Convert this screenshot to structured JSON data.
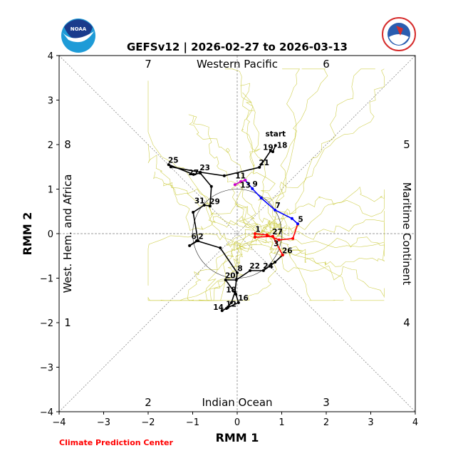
{
  "chart_data": {
    "type": "line",
    "title": "GEFSv12 | 2026-02-27 to 2026-03-13",
    "xlabel": "RMM 1",
    "ylabel": "RMM 2",
    "xlim": [
      -4,
      4
    ],
    "ylim": [
      -4,
      4
    ],
    "xticks": [
      "−4",
      "−3",
      "−2",
      "−1",
      "0",
      "1",
      "2",
      "3",
      "4"
    ],
    "yticks": [
      "−4",
      "−3",
      "−2",
      "−1",
      "0",
      "1",
      "2",
      "3",
      "4"
    ],
    "phases": [
      {
        "label": "1",
        "pos": "left-lower"
      },
      {
        "label": "2",
        "pos": "bottom-left"
      },
      {
        "label": "3",
        "pos": "bottom-right"
      },
      {
        "label": "4",
        "pos": "right-lower"
      },
      {
        "label": "5",
        "pos": "right-upper"
      },
      {
        "label": "6",
        "pos": "top-right"
      },
      {
        "label": "7",
        "pos": "top-left"
      },
      {
        "label": "8",
        "pos": "left-upper"
      }
    ],
    "regions": {
      "top": "Western Pacific",
      "bottom": "Indian Ocean",
      "left": "West. Hem. and Africa",
      "right": "Maritime Continent"
    },
    "start_label": "start",
    "series": [
      {
        "name": "observed",
        "color": "#000000",
        "points": [
          [
            0.86,
            1.98,
            "18"
          ],
          [
            0.8,
            1.84,
            "19"
          ],
          [
            0.75,
            1.86,
            ""
          ],
          [
            0.5,
            1.49,
            "21"
          ],
          [
            -0.29,
            1.3,
            ""
          ],
          [
            -0.83,
            1.38,
            "23"
          ],
          [
            -1.49,
            1.5,
            ""
          ],
          [
            -1.54,
            1.55,
            "25"
          ],
          [
            -0.98,
            1.33,
            ""
          ],
          [
            -0.83,
            1.36,
            "27"
          ],
          [
            -0.58,
            1.06,
            ""
          ],
          [
            -0.61,
            0.62,
            "29"
          ],
          [
            -0.74,
            0.64,
            "31"
          ],
          [
            -0.99,
            0.48,
            ""
          ],
          [
            -0.88,
            -0.16,
            "2"
          ],
          [
            -1.07,
            -0.27,
            ""
          ],
          [
            -0.91,
            -0.16,
            "6"
          ],
          [
            -0.38,
            -0.32,
            ""
          ],
          [
            0.0,
            -0.88,
            "8"
          ],
          [
            -0.05,
            -1.31,
            ""
          ],
          [
            -0.13,
            -1.55,
            ""
          ],
          [
            -0.24,
            -1.68,
            "12"
          ],
          [
            -0.34,
            -1.73,
            ""
          ],
          [
            -0.21,
            -1.66,
            "14"
          ],
          [
            0.03,
            -1.55,
            "16"
          ],
          [
            -0.03,
            -1.36,
            "18"
          ],
          [
            -0.26,
            -1.04,
            "20"
          ],
          [
            -0.02,
            -1.04,
            ""
          ],
          [
            0.29,
            -0.83,
            "22"
          ],
          [
            0.59,
            -0.83,
            "24"
          ],
          [
            0.85,
            -0.64,
            ""
          ],
          [
            1.02,
            -0.48,
            "26"
          ]
        ]
      },
      {
        "name": "forecast-week1",
        "color": "#ff0000",
        "points": [
          [
            1.02,
            -0.48,
            ""
          ],
          [
            0.8,
            -0.06,
            "27"
          ],
          [
            0.4,
            -0.08,
            ""
          ],
          [
            0.4,
            0.0,
            "1"
          ],
          [
            0.67,
            -0.03,
            ""
          ],
          [
            0.94,
            -0.14,
            "3"
          ],
          [
            1.25,
            -0.11,
            ""
          ],
          [
            1.36,
            0.22,
            ""
          ]
        ]
      },
      {
        "name": "forecast-week2",
        "color": "#0000ff",
        "points": [
          [
            1.36,
            0.22,
            "5"
          ],
          [
            1.23,
            0.34,
            ""
          ],
          [
            0.85,
            0.53,
            "7"
          ],
          [
            0.54,
            0.8,
            ""
          ],
          [
            0.34,
            1.01,
            "9"
          ],
          [
            0.18,
            1.2,
            "11"
          ]
        ]
      },
      {
        "name": "forecast-week3",
        "color": "#cc00cc",
        "points": [
          [
            0.18,
            1.2,
            ""
          ],
          [
            0.08,
            1.17,
            "13"
          ],
          [
            -0.05,
            1.1,
            ""
          ]
        ]
      }
    ],
    "ensemble_color": "#c8c832",
    "ensemble_members": 30
  },
  "logos": {
    "left": "NOAA",
    "right": "NATIONAL WEATHER SERVICE"
  },
  "credit": "Climate Prediction Center"
}
